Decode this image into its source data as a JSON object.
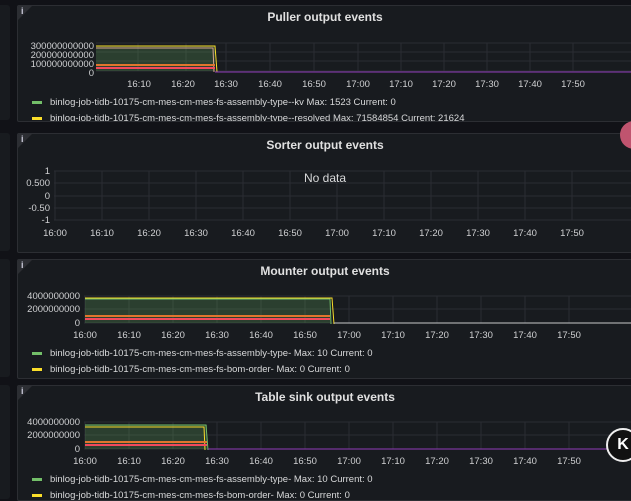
{
  "panels": [
    {
      "title": "Puller output events",
      "y_ticks": [
        "300000000000",
        "200000000000",
        "100000000000",
        "0"
      ],
      "x_ticks": [
        "16:10",
        "16:20",
        "16:30",
        "16:40",
        "16:50",
        "17:00",
        "17:10",
        "17:20",
        "17:30",
        "17:40",
        "17:50"
      ],
      "legend": [
        {
          "label": "binlog-job-tidb-10175-cm-mes-cm-mes-fs-assembly-type--kv  Max: 1523  Current: 0",
          "color": "#73bf69"
        },
        {
          "label": "binlog-job-tidb-10175-cm-mes-cm-mes-fs-assembly-type--resolved  Max: 71584854  Current: 21624",
          "color": "#fade2a"
        }
      ]
    },
    {
      "title": "Sorter output events",
      "y_ticks": [
        "1",
        "0.500",
        "0",
        "-0.50",
        "-1"
      ],
      "x_ticks": [
        "16:00",
        "16:10",
        "16:20",
        "16:30",
        "16:40",
        "16:50",
        "17:00",
        "17:10",
        "17:20",
        "17:30",
        "17:40",
        "17:50"
      ],
      "no_data": "No data"
    },
    {
      "title": "Mounter output events",
      "y_ticks": [
        "4000000000",
        "2000000000",
        "0"
      ],
      "x_ticks": [
        "16:00",
        "16:10",
        "16:20",
        "16:30",
        "16:40",
        "16:50",
        "17:00",
        "17:10",
        "17:20",
        "17:30",
        "17:40",
        "17:50"
      ],
      "legend": [
        {
          "label": "binlog-job-tidb-10175-cm-mes-cm-mes-fs-assembly-type-  Max: 10  Current: 0",
          "color": "#73bf69"
        },
        {
          "label": "binlog-job-tidb-10175-cm-mes-cm-mes-fs-bom-order-  Max: 0  Current: 0",
          "color": "#fade2a"
        }
      ]
    },
    {
      "title": "Table sink output events",
      "y_ticks": [
        "4000000000",
        "2000000000",
        "0"
      ],
      "x_ticks": [
        "16:00",
        "16:10",
        "16:20",
        "16:30",
        "16:40",
        "16:50",
        "17:00",
        "17:10",
        "17:20",
        "17:30",
        "17:40",
        "17:50"
      ],
      "legend": [
        {
          "label": "binlog-job-tidb-10175-cm-mes-cm-mes-fs-assembly-type-  Max: 10  Current: 0",
          "color": "#73bf69"
        },
        {
          "label": "binlog-job-tidb-10175-cm-mes-cm-mes-fs-bom-order-  Max: 0  Current: 0",
          "color": "#fade2a"
        }
      ]
    }
  ],
  "info_glyph": "i",
  "k_button": "K"
}
